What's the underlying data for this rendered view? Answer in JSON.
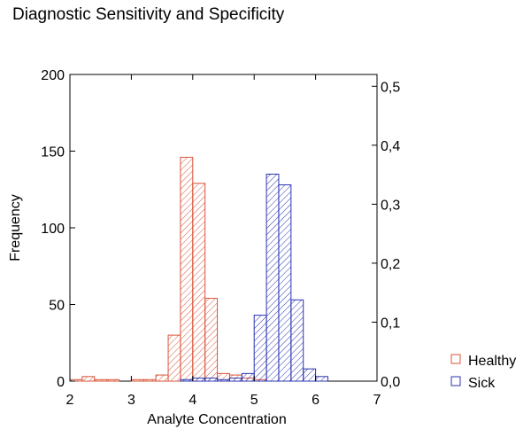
{
  "chart_data": {
    "type": "bar",
    "title": "Diagnostic Sensitivity and Specificity",
    "xlabel": "Analyte Concentration",
    "ylabel": "Frequency",
    "xlim": [
      2,
      7
    ],
    "ylim": [
      0,
      200
    ],
    "y2lim": [
      0,
      0.52
    ],
    "x_ticks": [
      "2",
      "3",
      "4",
      "5",
      "6",
      "7"
    ],
    "y_ticks": [
      "0",
      "50",
      "100",
      "150",
      "200"
    ],
    "y2_ticks": [
      "0,0",
      "0,1",
      "0,2",
      "0,3",
      "0,4",
      "0,5"
    ],
    "bin_width": 0.2,
    "grid": false,
    "legend_position": "right-bottom",
    "series": [
      {
        "name": "Healthy",
        "color": "#d9543a",
        "bins": [
          {
            "x": 2.0,
            "value": 1
          },
          {
            "x": 2.2,
            "value": 3
          },
          {
            "x": 2.4,
            "value": 1
          },
          {
            "x": 2.6,
            "value": 1
          },
          {
            "x": 3.0,
            "value": 1
          },
          {
            "x": 3.2,
            "value": 1
          },
          {
            "x": 3.4,
            "value": 4
          },
          {
            "x": 3.6,
            "value": 30
          },
          {
            "x": 3.8,
            "value": 146
          },
          {
            "x": 4.0,
            "value": 129
          },
          {
            "x": 4.2,
            "value": 54
          },
          {
            "x": 4.4,
            "value": 5
          },
          {
            "x": 4.6,
            "value": 4
          },
          {
            "x": 4.8,
            "value": 2
          },
          {
            "x": 5.0,
            "value": 1
          }
        ]
      },
      {
        "name": "Sick",
        "color": "#2a34b0",
        "bins": [
          {
            "x": 3.8,
            "value": 1
          },
          {
            "x": 4.0,
            "value": 2
          },
          {
            "x": 4.2,
            "value": 2
          },
          {
            "x": 4.4,
            "value": 1
          },
          {
            "x": 4.6,
            "value": 2
          },
          {
            "x": 4.8,
            "value": 5
          },
          {
            "x": 5.0,
            "value": 43
          },
          {
            "x": 5.2,
            "value": 135
          },
          {
            "x": 5.4,
            "value": 128
          },
          {
            "x": 5.6,
            "value": 53
          },
          {
            "x": 5.8,
            "value": 8
          },
          {
            "x": 6.0,
            "value": 3
          }
        ]
      }
    ]
  }
}
